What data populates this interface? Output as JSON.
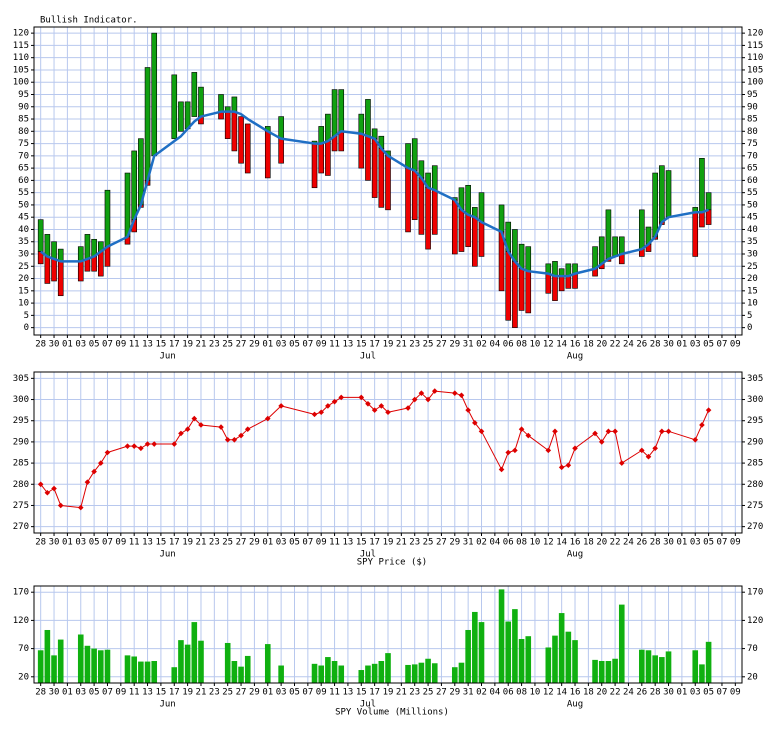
{
  "chart_data": [
    {
      "type": "range_bar",
      "title": "Bullish Indicator.",
      "categories": [
        "28",
        null,
        "30",
        null,
        "01",
        null,
        "03",
        null,
        "05",
        null,
        "07",
        null,
        "09",
        null,
        "11",
        null,
        "13",
        null,
        "15",
        null,
        "17",
        null,
        "19",
        null,
        "21",
        null,
        "23",
        null,
        "25",
        null,
        "27",
        null,
        "29",
        null,
        "01",
        null,
        "03",
        null,
        "05",
        null,
        "07",
        null,
        "09",
        null,
        "11",
        null,
        "13",
        null,
        "15",
        null,
        "17",
        null,
        "19",
        null,
        "21",
        null,
        "23",
        null,
        "25",
        null,
        "27",
        null,
        "29",
        null,
        "31",
        null,
        "02",
        null,
        "04",
        null,
        "06",
        null,
        "08",
        null,
        "10",
        null,
        "12",
        null,
        "14",
        null,
        "16",
        null,
        "18",
        null,
        "20",
        null,
        "22",
        null,
        "24",
        null,
        "26",
        null,
        "28",
        null,
        "30",
        null,
        "01",
        null,
        "03",
        null,
        "05",
        null,
        "07",
        null,
        "09"
      ],
      "months": [
        null,
        null,
        null,
        null,
        null,
        null,
        null,
        null,
        null,
        null,
        null,
        null,
        null,
        null,
        null,
        null,
        null,
        null,
        null,
        "Jun",
        null,
        null,
        null,
        null,
        null,
        null,
        null,
        null,
        null,
        null,
        null,
        null,
        null,
        null,
        null,
        null,
        null,
        null,
        null,
        null,
        null,
        null,
        null,
        null,
        null,
        null,
        null,
        null,
        null,
        "Jul",
        null,
        null,
        null,
        null,
        null,
        null,
        null,
        null,
        null,
        null,
        null,
        null,
        null,
        null,
        null,
        null,
        null,
        null,
        null,
        null,
        null,
        null,
        null,
        null,
        null,
        null,
        null,
        null,
        null,
        null,
        "Aug",
        null,
        null,
        null,
        null,
        null,
        null,
        null,
        null,
        null,
        null,
        null,
        null,
        null,
        null,
        null,
        null,
        null,
        null,
        null,
        null,
        null,
        null,
        null,
        null
      ],
      "low": [
        26,
        18,
        19,
        13,
        null,
        null,
        19,
        23,
        23,
        21,
        25,
        null,
        null,
        34,
        39,
        49,
        58,
        70,
        null,
        null,
        77,
        80,
        81,
        86,
        83,
        null,
        null,
        85,
        77,
        72,
        67,
        63,
        null,
        null,
        61,
        null,
        67,
        null,
        null,
        null,
        null,
        57,
        63,
        62,
        72,
        72,
        null,
        null,
        65,
        60,
        53,
        49,
        48,
        null,
        null,
        39,
        44,
        38,
        32,
        38,
        null,
        null,
        30,
        31,
        33,
        25,
        29,
        null,
        null,
        15,
        3,
        0,
        7,
        6,
        null,
        null,
        14,
        11,
        15,
        16,
        16,
        null,
        null,
        21,
        24,
        27,
        29,
        26,
        null,
        null,
        29,
        31,
        36,
        42,
        45,
        null,
        null,
        null,
        29,
        41,
        42,
        null,
        null,
        null,
        null
      ],
      "high": [
        44,
        38,
        35,
        32,
        null,
        null,
        33,
        38,
        36,
        35,
        56,
        null,
        null,
        63,
        72,
        77,
        106,
        120,
        null,
        null,
        103,
        92,
        92,
        104,
        98,
        null,
        null,
        95,
        90,
        94,
        86,
        83,
        null,
        null,
        82,
        null,
        86,
        null,
        null,
        null,
        null,
        76,
        82,
        87,
        97,
        97,
        null,
        null,
        87,
        93,
        81,
        78,
        72,
        null,
        null,
        75,
        77,
        68,
        63,
        66,
        null,
        null,
        53,
        57,
        58,
        49,
        55,
        null,
        null,
        50,
        43,
        40,
        34,
        33,
        null,
        null,
        26,
        27,
        24,
        26,
        26,
        null,
        null,
        33,
        37,
        48,
        37,
        37,
        null,
        null,
        48,
        41,
        63,
        66,
        64,
        null,
        null,
        null,
        49,
        69,
        55,
        null,
        null,
        null,
        null
      ],
      "average": [
        31,
        29,
        28,
        27,
        null,
        null,
        27,
        28,
        29,
        31,
        33,
        null,
        null,
        37,
        44,
        50,
        60,
        70,
        null,
        null,
        76,
        78,
        81,
        84,
        86,
        null,
        null,
        88,
        88,
        88,
        87,
        85,
        null,
        null,
        80,
        null,
        77,
        null,
        null,
        null,
        null,
        75,
        75,
        76,
        78,
        80,
        null,
        null,
        79,
        78,
        77,
        73,
        70,
        null,
        null,
        65,
        64,
        61,
        57,
        56,
        null,
        null,
        52,
        48,
        46,
        45,
        43,
        null,
        null,
        39,
        31,
        27,
        24,
        23,
        null,
        null,
        22,
        21,
        21,
        21,
        22,
        null,
        null,
        24,
        26,
        28,
        29,
        30,
        null,
        null,
        32,
        34,
        37,
        43,
        45,
        null,
        null,
        null,
        47,
        47,
        48,
        null,
        null,
        null,
        null
      ],
      "up_color": "#10a010",
      "down_color": "#ee0000",
      "average_color": "#1f6fc4",
      "grid_color": "#b8c8ee",
      "ylim": [
        -3,
        122.5
      ],
      "yticks": [
        0,
        5,
        10,
        15,
        20,
        25,
        30,
        35,
        40,
        45,
        50,
        55,
        60,
        65,
        70,
        75,
        80,
        85,
        90,
        95,
        100,
        105,
        110,
        115,
        120
      ],
      "grid": true
    },
    {
      "type": "line",
      "x_label": "SPY Price ($)",
      "categories": [
        "28",
        null,
        "30",
        null,
        "01",
        null,
        "03",
        null,
        "05",
        null,
        "07",
        null,
        "09",
        null,
        "11",
        null,
        "13",
        null,
        "15",
        null,
        "17",
        null,
        "19",
        null,
        "21",
        null,
        "23",
        null,
        "25",
        null,
        "27",
        null,
        "29",
        null,
        "01",
        null,
        "03",
        null,
        "05",
        null,
        "07",
        null,
        "09",
        null,
        "11",
        null,
        "13",
        null,
        "15",
        null,
        "17",
        null,
        "19",
        null,
        "21",
        null,
        "23",
        null,
        "25",
        null,
        "27",
        null,
        "29",
        null,
        "31",
        null,
        "02",
        null,
        "04",
        null,
        "06",
        null,
        "08",
        null,
        "10",
        null,
        "12",
        null,
        "14",
        null,
        "16",
        null,
        "18",
        null,
        "20",
        null,
        "22",
        null,
        "24",
        null,
        "26",
        null,
        "28",
        null,
        "30",
        null,
        "01",
        null,
        "03",
        null,
        "05",
        null,
        "07",
        null,
        "09"
      ],
      "months": [
        null,
        null,
        null,
        null,
        null,
        null,
        null,
        null,
        null,
        null,
        null,
        null,
        null,
        null,
        null,
        null,
        null,
        null,
        null,
        "Jun",
        null,
        null,
        null,
        null,
        null,
        null,
        null,
        null,
        null,
        null,
        null,
        null,
        null,
        null,
        null,
        null,
        null,
        null,
        null,
        null,
        null,
        null,
        null,
        null,
        null,
        null,
        null,
        null,
        null,
        "Jul",
        null,
        null,
        null,
        null,
        null,
        null,
        null,
        null,
        null,
        null,
        null,
        null,
        null,
        null,
        null,
        null,
        null,
        null,
        null,
        null,
        null,
        null,
        null,
        null,
        null,
        null,
        null,
        null,
        null,
        null,
        "Aug",
        null,
        null,
        null,
        null,
        null,
        null,
        null,
        null,
        null,
        null,
        null,
        null,
        null,
        null,
        null,
        null,
        null,
        null,
        null,
        null,
        null,
        null,
        null,
        null
      ],
      "values": [
        280,
        278,
        279,
        275,
        null,
        null,
        274.5,
        280.5,
        283,
        285,
        287.5,
        null,
        null,
        289,
        289,
        288.5,
        289.5,
        289.5,
        null,
        null,
        289.5,
        292,
        293,
        295.5,
        294,
        null,
        null,
        293.5,
        290.5,
        290.5,
        291.5,
        293,
        null,
        null,
        295.5,
        null,
        298.5,
        null,
        null,
        null,
        null,
        296.5,
        297,
        298.5,
        299.5,
        300.5,
        null,
        null,
        300.5,
        299,
        297.5,
        298.5,
        297,
        null,
        null,
        298,
        300,
        301.5,
        300,
        302,
        null,
        null,
        301.5,
        301,
        297.5,
        294.5,
        292.5,
        null,
        null,
        283.5,
        287.5,
        288,
        293,
        291.5,
        null,
        null,
        288,
        292.5,
        284,
        284.5,
        288.5,
        null,
        null,
        292,
        290,
        292.5,
        292.5,
        285,
        null,
        null,
        288,
        286.5,
        288.5,
        292.5,
        292.5,
        null,
        null,
        null,
        290.5,
        294,
        297.5,
        null,
        null,
        null,
        null
      ],
      "color": "#dd0000",
      "grid_color": "#b8c8ee",
      "ylim": [
        268.5,
        306.5
      ],
      "yticks": [
        270,
        275,
        280,
        285,
        290,
        295,
        300,
        305
      ],
      "grid": true
    },
    {
      "type": "bar",
      "x_label": "SPY Volume (Millions)",
      "categories": [
        "28",
        null,
        "30",
        null,
        "01",
        null,
        "03",
        null,
        "05",
        null,
        "07",
        null,
        "09",
        null,
        "11",
        null,
        "13",
        null,
        "15",
        null,
        "17",
        null,
        "19",
        null,
        "21",
        null,
        "23",
        null,
        "25",
        null,
        "27",
        null,
        "29",
        null,
        "01",
        null,
        "03",
        null,
        "05",
        null,
        "07",
        null,
        "09",
        null,
        "11",
        null,
        "13",
        null,
        "15",
        null,
        "17",
        null,
        "19",
        null,
        "21",
        null,
        "23",
        null,
        "25",
        null,
        "27",
        null,
        "29",
        null,
        "31",
        null,
        "02",
        null,
        "04",
        null,
        "06",
        null,
        "08",
        null,
        "10",
        null,
        "12",
        null,
        "14",
        null,
        "16",
        null,
        "18",
        null,
        "20",
        null,
        "22",
        null,
        "24",
        null,
        "26",
        null,
        "28",
        null,
        "30",
        null,
        "01",
        null,
        "03",
        null,
        "05",
        null,
        "07",
        null,
        "09"
      ],
      "months": [
        null,
        null,
        null,
        null,
        null,
        null,
        null,
        null,
        null,
        null,
        null,
        null,
        null,
        null,
        null,
        null,
        null,
        null,
        null,
        "Jun",
        null,
        null,
        null,
        null,
        null,
        null,
        null,
        null,
        null,
        null,
        null,
        null,
        null,
        null,
        null,
        null,
        null,
        null,
        null,
        null,
        null,
        null,
        null,
        null,
        null,
        null,
        null,
        null,
        null,
        "Jul",
        null,
        null,
        null,
        null,
        null,
        null,
        null,
        null,
        null,
        null,
        null,
        null,
        null,
        null,
        null,
        null,
        null,
        null,
        null,
        null,
        null,
        null,
        null,
        null,
        null,
        null,
        null,
        null,
        null,
        null,
        "Aug",
        null,
        null,
        null,
        null,
        null,
        null,
        null,
        null,
        null,
        null,
        null,
        null,
        null,
        null,
        null,
        null,
        null,
        null,
        null,
        null,
        null,
        null,
        null,
        null
      ],
      "values": [
        67,
        103,
        58,
        86,
        null,
        null,
        95,
        75,
        70,
        67,
        68,
        null,
        null,
        58,
        56,
        47,
        47,
        48,
        null,
        null,
        37,
        85,
        77,
        117,
        84,
        null,
        null,
        null,
        80,
        48,
        38,
        57,
        null,
        null,
        78,
        null,
        40,
        null,
        null,
        null,
        null,
        43,
        40,
        55,
        48,
        40,
        null,
        null,
        32,
        40,
        43,
        48,
        62,
        null,
        null,
        41,
        42,
        45,
        52,
        44,
        null,
        null,
        37,
        45,
        103,
        135,
        117,
        null,
        null,
        175,
        118,
        140,
        87,
        92,
        null,
        null,
        72,
        93,
        133,
        100,
        85,
        null,
        null,
        50,
        48,
        48,
        52,
        148,
        null,
        null,
        68,
        67,
        58,
        55,
        65,
        null,
        null,
        null,
        67,
        42,
        82,
        null,
        null,
        null,
        null
      ],
      "color": "#10b010",
      "grid_color": "#b8c8ee",
      "ylim": [
        9,
        181
      ],
      "yticks": [
        20,
        70,
        120,
        170
      ],
      "grid": true
    }
  ]
}
